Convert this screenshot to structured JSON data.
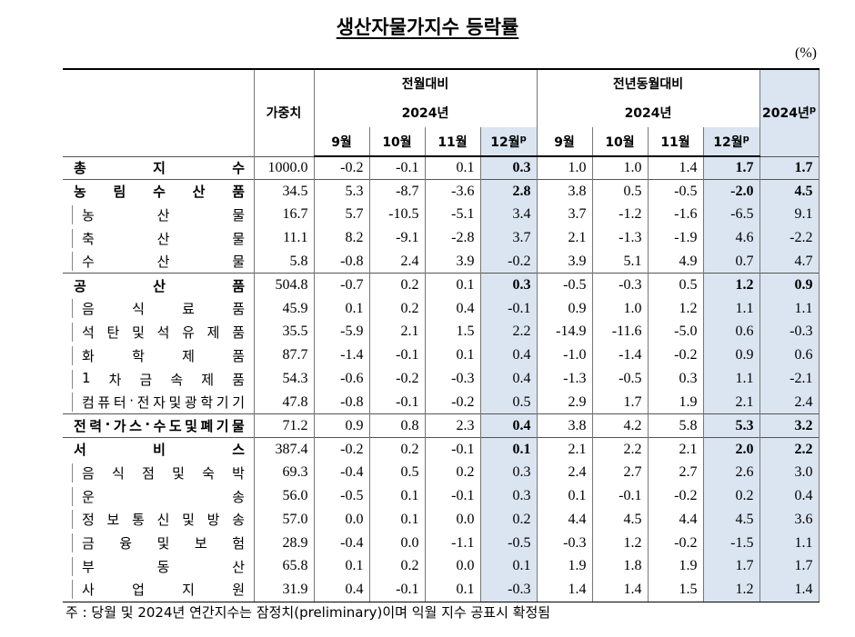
{
  "title": "생산자물가지수 등락률",
  "unit": "(%)",
  "header": {
    "weight": "가중치",
    "mom": {
      "label": "전월대비",
      "year": "2024년",
      "months": [
        "9월",
        "10월",
        "11월",
        "12월"
      ],
      "prelim": "p"
    },
    "yoy": {
      "label": "전년동월대비",
      "year": "2024년",
      "months": [
        "9월",
        "10월",
        "11월",
        "12월"
      ],
      "prelim": "p"
    },
    "annual": {
      "label": "2024년",
      "prelim": "p"
    }
  },
  "rows": [
    {
      "name": "총지수",
      "weight": "1000.0",
      "mom": [
        "-0.2",
        "-0.1",
        "0.1",
        "0.3"
      ],
      "yoy": [
        "1.0",
        "1.0",
        "1.4",
        "1.7"
      ],
      "annual": "1.7"
    },
    {
      "name": "농림수산품",
      "weight": "34.5",
      "mom": [
        "5.3",
        "-8.7",
        "-3.6",
        "2.8"
      ],
      "yoy": [
        "3.8",
        "0.5",
        "-0.5",
        "-2.0"
      ],
      "annual": "4.5",
      "items": [
        {
          "name": "농산물",
          "weight": "16.7",
          "mom": [
            "5.7",
            "-10.5",
            "-5.1",
            "3.4"
          ],
          "yoy": [
            "3.7",
            "-1.2",
            "-1.6",
            "-6.5"
          ],
          "annual": "9.1"
        },
        {
          "name": "축산물",
          "weight": "11.1",
          "mom": [
            "8.2",
            "-9.1",
            "-2.8",
            "3.7"
          ],
          "yoy": [
            "2.1",
            "-1.3",
            "-1.9",
            "4.6"
          ],
          "annual": "-2.2"
        },
        {
          "name": "수산물",
          "weight": "5.8",
          "mom": [
            "-0.8",
            "2.4",
            "3.9",
            "-0.2"
          ],
          "yoy": [
            "3.9",
            "5.1",
            "4.9",
            "0.7"
          ],
          "annual": "4.7"
        }
      ]
    },
    {
      "name": "공산품",
      "weight": "504.8",
      "mom": [
        "-0.7",
        "0.2",
        "0.1",
        "0.3"
      ],
      "yoy": [
        "-0.5",
        "-0.3",
        "0.5",
        "1.2"
      ],
      "annual": "0.9",
      "items": [
        {
          "name": "음식료품",
          "weight": "45.9",
          "mom": [
            "0.1",
            "0.2",
            "0.4",
            "-0.1"
          ],
          "yoy": [
            "0.9",
            "1.0",
            "1.2",
            "1.1"
          ],
          "annual": "1.1"
        },
        {
          "name": "석탄및석유제품",
          "weight": "35.5",
          "mom": [
            "-5.9",
            "2.1",
            "1.5",
            "2.2"
          ],
          "yoy": [
            "-14.9",
            "-11.6",
            "-5.0",
            "0.6"
          ],
          "annual": "-0.3"
        },
        {
          "name": "화학제품",
          "weight": "87.7",
          "mom": [
            "-1.4",
            "-0.1",
            "0.1",
            "0.4"
          ],
          "yoy": [
            "-1.0",
            "-1.4",
            "-0.2",
            "0.9"
          ],
          "annual": "0.6"
        },
        {
          "name": "1차금속제품",
          "weight": "54.3",
          "mom": [
            "-0.6",
            "-0.2",
            "-0.3",
            "0.4"
          ],
          "yoy": [
            "-1.3",
            "-0.5",
            "0.3",
            "1.1"
          ],
          "annual": "-2.1"
        },
        {
          "name": "컴퓨터·전자및광학기기",
          "weight": "47.8",
          "mom": [
            "-0.8",
            "-0.1",
            "-0.2",
            "0.5"
          ],
          "yoy": [
            "2.9",
            "1.7",
            "1.9",
            "2.1"
          ],
          "annual": "2.4"
        }
      ]
    },
    {
      "name": "전력·가스·수도및폐기물",
      "weight": "71.2",
      "mom": [
        "0.9",
        "0.8",
        "2.3",
        "0.4"
      ],
      "yoy": [
        "3.8",
        "4.2",
        "5.8",
        "5.3"
      ],
      "annual": "3.2"
    },
    {
      "name": "서비스",
      "weight": "387.4",
      "mom": [
        "-0.2",
        "0.2",
        "-0.1",
        "0.1"
      ],
      "yoy": [
        "2.1",
        "2.2",
        "2.1",
        "2.0"
      ],
      "annual": "2.2",
      "items": [
        {
          "name": "음식점및숙박",
          "weight": "69.3",
          "mom": [
            "-0.4",
            "0.5",
            "0.2",
            "0.3"
          ],
          "yoy": [
            "2.4",
            "2.7",
            "2.7",
            "2.6"
          ],
          "annual": "3.0"
        },
        {
          "name": "운송",
          "weight": "56.0",
          "mom": [
            "-0.5",
            "0.1",
            "-0.1",
            "0.3"
          ],
          "yoy": [
            "0.1",
            "-0.1",
            "-0.2",
            "0.2"
          ],
          "annual": "0.4"
        },
        {
          "name": "정보통신및방송",
          "weight": "57.0",
          "mom": [
            "0.0",
            "0.1",
            "0.0",
            "0.2"
          ],
          "yoy": [
            "4.4",
            "4.5",
            "4.4",
            "4.5"
          ],
          "annual": "3.6"
        },
        {
          "name": "금융및보험",
          "weight": "28.9",
          "mom": [
            "-0.4",
            "0.0",
            "-1.1",
            "-0.5"
          ],
          "yoy": [
            "-0.3",
            "1.2",
            "-0.2",
            "-1.5"
          ],
          "annual": "1.1"
        },
        {
          "name": "부동산",
          "weight": "65.8",
          "mom": [
            "0.1",
            "0.2",
            "0.0",
            "0.1"
          ],
          "yoy": [
            "1.9",
            "1.8",
            "1.9",
            "1.7"
          ],
          "annual": "1.7"
        },
        {
          "name": "사업지원",
          "weight": "31.9",
          "mom": [
            "0.4",
            "-0.1",
            "0.1",
            "-0.3"
          ],
          "yoy": [
            "1.4",
            "1.4",
            "1.5",
            "1.2"
          ],
          "annual": "1.4"
        }
      ]
    }
  ],
  "note": "주 : 당월 및 2024년 연간지수는 잠정치(preliminary)이며 익월 지수 공표시 확정됨"
}
